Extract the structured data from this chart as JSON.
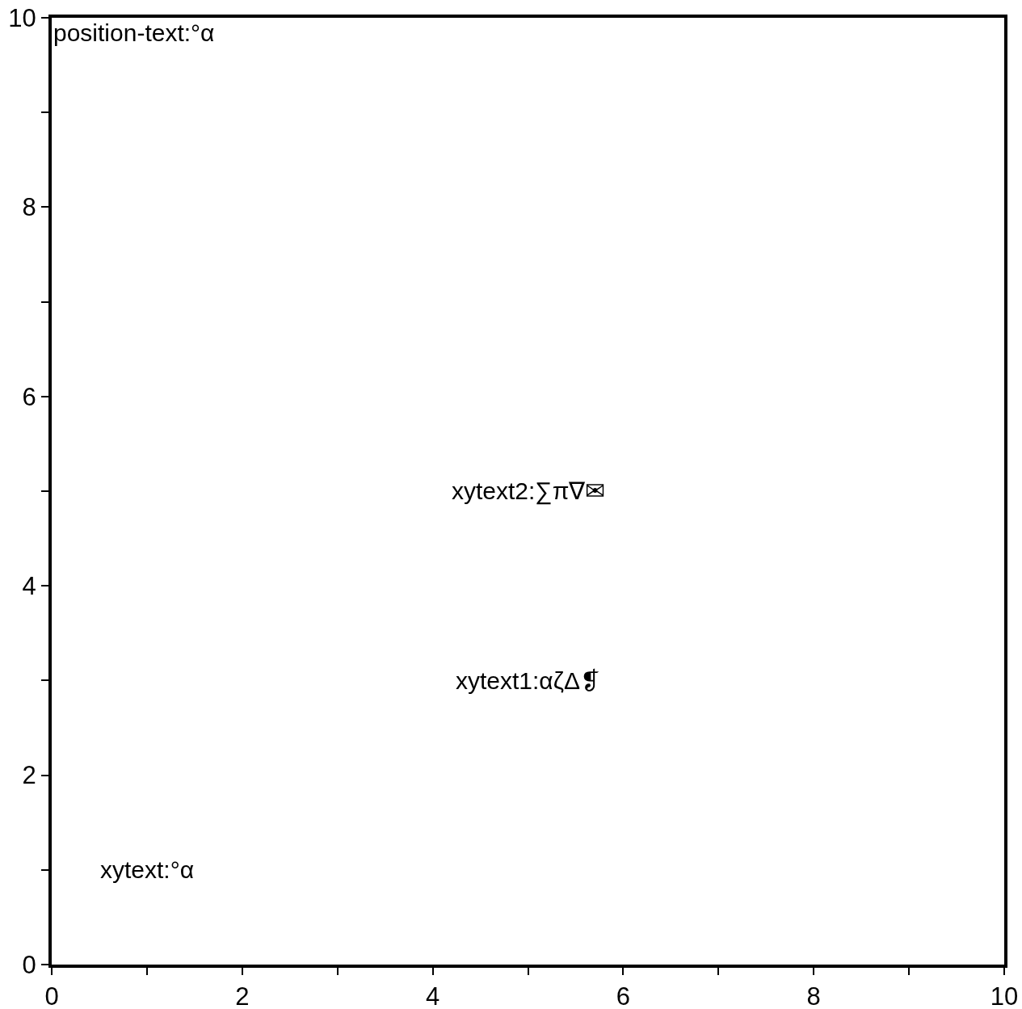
{
  "chart_data": {
    "type": "scatter",
    "annotations": [
      "position-text:°α",
      "xytext2:∑π∇✉",
      "xytext1:αζΔ❡",
      "xytext:°α"
    ],
    "xlim": [
      0,
      10
    ],
    "ylim": [
      0,
      10
    ],
    "xticks": [
      0,
      {
        "value": 1,
        "label": null
      },
      2,
      {
        "value": 3,
        "label": null
      },
      4,
      {
        "value": 5,
        "label": null
      },
      6,
      {
        "value": 7,
        "label": null
      },
      8,
      {
        "value": 9,
        "label": null
      },
      10
    ],
    "yticks": [
      0,
      {
        "value": 1,
        "label": null
      },
      2,
      {
        "value": 3,
        "label": null
      },
      4,
      {
        "value": 5,
        "label": null
      },
      6,
      {
        "value": 7,
        "label": null
      },
      8,
      {
        "value": 9,
        "label": null
      },
      10
    ]
  }
}
